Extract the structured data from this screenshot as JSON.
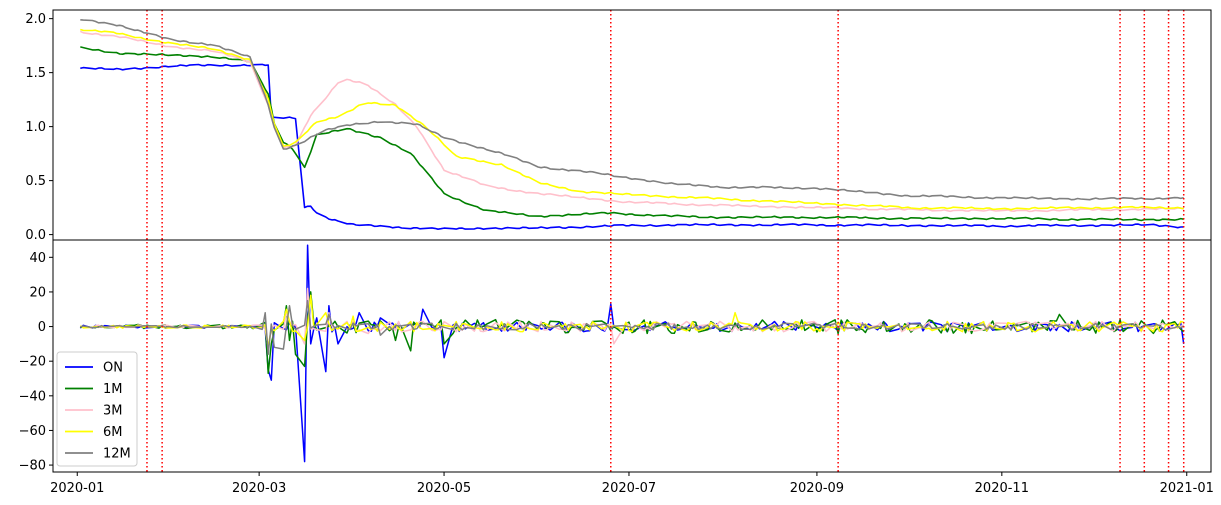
{
  "chart_data": {
    "type": "line",
    "x_axis": {
      "type": "date",
      "range": [
        "2019-12-24",
        "2021-01-09"
      ],
      "ticks": [
        "2020-01",
        "2020-03",
        "2020-05",
        "2020-07",
        "2020-09",
        "2020-11",
        "2021-01"
      ]
    },
    "vlines": {
      "color": "#ff0000",
      "style": "dotted",
      "dates": [
        "2020-01-24",
        "2020-01-29",
        "2020-06-25",
        "2020-09-08",
        "2020-12-10",
        "2020-12-18",
        "2020-12-26",
        "2020-12-31"
      ]
    },
    "colors": {
      "ON": "#0000ff",
      "1M": "#008000",
      "3M": "#ffc0cb",
      "6M": "#ffff00",
      "12M": "#808080"
    },
    "legend": {
      "location": "lower-left",
      "entries": [
        "ON",
        "1M",
        "3M",
        "6M",
        "12M"
      ]
    },
    "grid": false,
    "panels": [
      {
        "name": "levels",
        "ylim": [
          -0.05,
          2.08
        ],
        "yticks": [
          "0.0",
          "0.5",
          "1.0",
          "1.5",
          "2.0"
        ],
        "series": [
          {
            "name": "ON",
            "points": [
              [
                "2020-01-02",
                1.54
              ],
              [
                "2020-01-15",
                1.53
              ],
              [
                "2020-02-01",
                1.56
              ],
              [
                "2020-02-15",
                1.57
              ],
              [
                "2020-03-04",
                1.57
              ],
              [
                "2020-03-05",
                1.08
              ],
              [
                "2020-03-15",
                1.08
              ],
              [
                "2020-03-16",
                0.25
              ],
              [
                "2020-03-18",
                0.27
              ],
              [
                "2020-03-20",
                0.2
              ],
              [
                "2020-03-25",
                0.14
              ],
              [
                "2020-04-01",
                0.09
              ],
              [
                "2020-04-15",
                0.07
              ],
              [
                "2020-05-01",
                0.05
              ],
              [
                "2020-05-15",
                0.06
              ],
              [
                "2020-06-01",
                0.06
              ],
              [
                "2020-06-25",
                0.08
              ],
              [
                "2020-07-15",
                0.09
              ],
              [
                "2020-09-01",
                0.09
              ],
              [
                "2020-11-01",
                0.08
              ],
              [
                "2020-12-20",
                0.09
              ],
              [
                "2020-12-31",
                0.07
              ]
            ]
          },
          {
            "name": "1M",
            "points": [
              [
                "2020-01-02",
                1.73
              ],
              [
                "2020-01-15",
                1.68
              ],
              [
                "2020-02-01",
                1.66
              ],
              [
                "2020-02-15",
                1.65
              ],
              [
                "2020-02-27",
                1.6
              ],
              [
                "2020-03-04",
                1.3
              ],
              [
                "2020-03-07",
                0.9
              ],
              [
                "2020-03-12",
                0.8
              ],
              [
                "2020-03-16",
                0.62
              ],
              [
                "2020-03-20",
                0.92
              ],
              [
                "2020-03-30",
                0.98
              ],
              [
                "2020-04-10",
                0.9
              ],
              [
                "2020-04-20",
                0.75
              ],
              [
                "2020-05-01",
                0.38
              ],
              [
                "2020-05-15",
                0.22
              ],
              [
                "2020-06-01",
                0.17
              ],
              [
                "2020-06-25",
                0.2
              ],
              [
                "2020-07-15",
                0.17
              ],
              [
                "2020-08-01",
                0.16
              ],
              [
                "2020-09-01",
                0.16
              ],
              [
                "2020-10-01",
                0.15
              ],
              [
                "2020-11-01",
                0.15
              ],
              [
                "2020-12-01",
                0.14
              ],
              [
                "2020-12-31",
                0.14
              ]
            ]
          },
          {
            "name": "3M",
            "points": [
              [
                "2020-01-02",
                1.88
              ],
              [
                "2020-01-15",
                1.83
              ],
              [
                "2020-02-01",
                1.74
              ],
              [
                "2020-02-15",
                1.7
              ],
              [
                "2020-02-27",
                1.6
              ],
              [
                "2020-03-04",
                1.2
              ],
              [
                "2020-03-08",
                0.8
              ],
              [
                "2020-03-13",
                0.82
              ],
              [
                "2020-03-18",
                1.1
              ],
              [
                "2020-03-24",
                1.3
              ],
              [
                "2020-03-28",
                1.45
              ],
              [
                "2020-04-05",
                1.4
              ],
              [
                "2020-04-15",
                1.2
              ],
              [
                "2020-04-22",
                1.0
              ],
              [
                "2020-05-01",
                0.6
              ],
              [
                "2020-05-15",
                0.45
              ],
              [
                "2020-06-01",
                0.38
              ],
              [
                "2020-07-01",
                0.3
              ],
              [
                "2020-08-01",
                0.27
              ],
              [
                "2020-09-01",
                0.25
              ],
              [
                "2020-10-01",
                0.23
              ],
              [
                "2020-11-01",
                0.22
              ],
              [
                "2020-12-01",
                0.23
              ],
              [
                "2020-12-31",
                0.24
              ]
            ]
          },
          {
            "name": "6M",
            "points": [
              [
                "2020-01-02",
                1.9
              ],
              [
                "2020-01-15",
                1.86
              ],
              [
                "2020-02-01",
                1.77
              ],
              [
                "2020-02-15",
                1.72
              ],
              [
                "2020-02-27",
                1.62
              ],
              [
                "2020-03-04",
                1.25
              ],
              [
                "2020-03-08",
                0.8
              ],
              [
                "2020-03-13",
                0.85
              ],
              [
                "2020-03-20",
                1.05
              ],
              [
                "2020-03-28",
                1.1
              ],
              [
                "2020-04-05",
                1.22
              ],
              [
                "2020-04-15",
                1.2
              ],
              [
                "2020-04-25",
                1.0
              ],
              [
                "2020-05-05",
                0.72
              ],
              [
                "2020-05-20",
                0.65
              ],
              [
                "2020-06-01",
                0.48
              ],
              [
                "2020-06-15",
                0.4
              ],
              [
                "2020-07-01",
                0.37
              ],
              [
                "2020-08-01",
                0.33
              ],
              [
                "2020-09-01",
                0.29
              ],
              [
                "2020-10-01",
                0.25
              ],
              [
                "2020-11-01",
                0.24
              ],
              [
                "2020-12-01",
                0.25
              ],
              [
                "2020-12-31",
                0.25
              ]
            ]
          },
          {
            "name": "12M",
            "points": [
              [
                "2020-01-02",
                1.99
              ],
              [
                "2020-01-15",
                1.94
              ],
              [
                "2020-02-01",
                1.8
              ],
              [
                "2020-02-15",
                1.76
              ],
              [
                "2020-02-27",
                1.64
              ],
              [
                "2020-03-04",
                1.2
              ],
              [
                "2020-03-08",
                0.78
              ],
              [
                "2020-03-14",
                0.84
              ],
              [
                "2020-03-22",
                0.96
              ],
              [
                "2020-04-01",
                1.02
              ],
              [
                "2020-04-10",
                1.05
              ],
              [
                "2020-04-22",
                1.02
              ],
              [
                "2020-05-01",
                0.9
              ],
              [
                "2020-05-20",
                0.75
              ],
              [
                "2020-06-01",
                0.63
              ],
              [
                "2020-06-20",
                0.57
              ],
              [
                "2020-07-15",
                0.47
              ],
              [
                "2020-08-01",
                0.44
              ],
              [
                "2020-09-01",
                0.43
              ],
              [
                "2020-10-01",
                0.36
              ],
              [
                "2020-11-01",
                0.34
              ],
              [
                "2020-12-01",
                0.33
              ],
              [
                "2020-12-31",
                0.34
              ]
            ]
          }
        ]
      },
      {
        "name": "changes",
        "ylim": [
          -84,
          50
        ],
        "yticks": [
          "40",
          "20",
          "0",
          "−20",
          "−40",
          "−60",
          "−80"
        ],
        "series": [
          {
            "name": "ON",
            "amplitude": 3,
            "overrides": [
              [
                "2020-03-04",
                -25
              ],
              [
                "2020-03-05",
                -31
              ],
              [
                "2020-03-16",
                -78
              ],
              [
                "2020-03-17",
                47
              ],
              [
                "2020-03-18",
                -10
              ],
              [
                "2020-03-20",
                5
              ],
              [
                "2020-03-23",
                -26
              ],
              [
                "2020-03-24",
                12
              ],
              [
                "2020-03-25",
                -3
              ],
              [
                "2020-03-27",
                -10
              ],
              [
                "2020-04-03",
                8
              ],
              [
                "2020-04-10",
                5
              ],
              [
                "2020-04-24",
                10
              ],
              [
                "2020-05-01",
                -18
              ],
              [
                "2020-06-25",
                13
              ],
              [
                "2020-07-05",
                15
              ],
              [
                "2020-12-31",
                -10
              ]
            ]
          },
          {
            "name": "1M",
            "amplitude": 4,
            "overrides": [
              [
                "2020-03-04",
                -27
              ],
              [
                "2020-03-05",
                -10
              ],
              [
                "2020-03-10",
                12
              ],
              [
                "2020-03-11",
                -8
              ],
              [
                "2020-03-13",
                -16
              ],
              [
                "2020-03-16",
                -23
              ],
              [
                "2020-03-18",
                20
              ],
              [
                "2020-03-20",
                -2
              ],
              [
                "2020-04-15",
                -8
              ],
              [
                "2020-04-20",
                -14
              ],
              [
                "2020-05-01",
                -10
              ],
              [
                "2020-11-20",
                7
              ]
            ]
          },
          {
            "name": "3M",
            "amplitude": 3,
            "overrides": [
              [
                "2020-03-04",
                -12
              ],
              [
                "2020-03-10",
                8
              ],
              [
                "2020-03-16",
                -10
              ],
              [
                "2020-03-17",
                22
              ],
              [
                "2020-03-24",
                8
              ],
              [
                "2020-04-06",
                -4
              ],
              [
                "2020-06-26",
                -10
              ],
              [
                "2020-12-05",
                13
              ]
            ]
          },
          {
            "name": "6M",
            "amplitude": 3,
            "overrides": [
              [
                "2020-03-04",
                -12
              ],
              [
                "2020-03-10",
                10
              ],
              [
                "2020-03-16",
                -8
              ],
              [
                "2020-03-18",
                18
              ],
              [
                "2020-03-23",
                8
              ],
              [
                "2020-04-01",
                6
              ],
              [
                "2020-08-05",
                8
              ]
            ]
          },
          {
            "name": "12M",
            "amplitude": 2,
            "overrides": [
              [
                "2020-03-03",
                8
              ],
              [
                "2020-03-04",
                -16
              ],
              [
                "2020-03-06",
                -12
              ],
              [
                "2020-03-09",
                -13
              ],
              [
                "2020-03-11",
                12
              ],
              [
                "2020-03-15",
                -10
              ],
              [
                "2020-03-17",
                15
              ],
              [
                "2020-03-24",
                7
              ],
              [
                "2020-04-10",
                -5
              ]
            ]
          }
        ]
      }
    ]
  }
}
